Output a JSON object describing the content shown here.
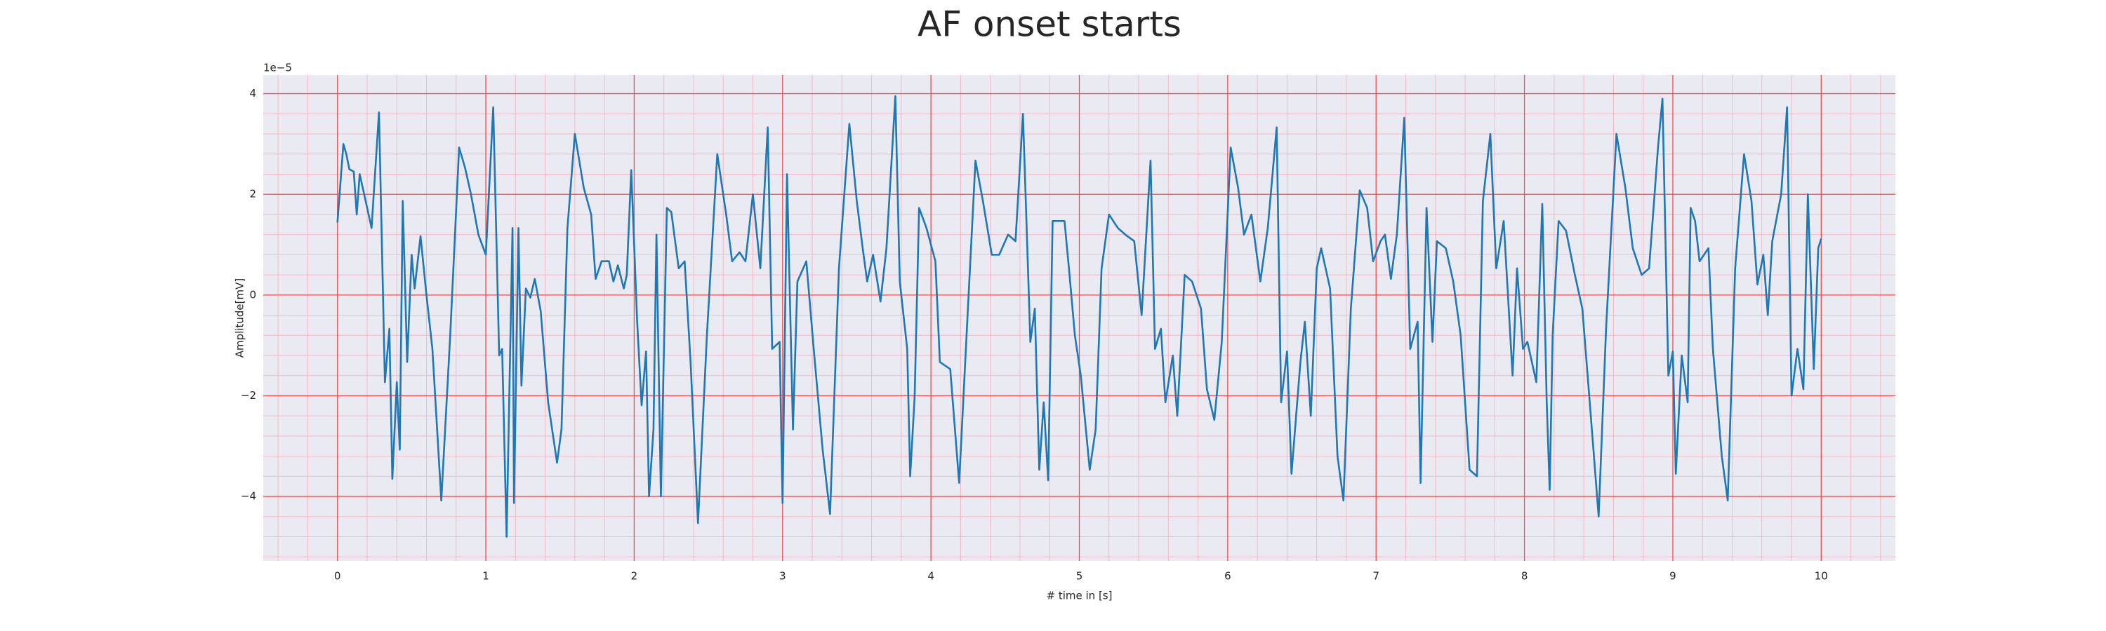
{
  "chart_data": {
    "type": "line",
    "title": "AF onset starts",
    "xlabel": "# time in [s]",
    "ylabel": "Amplitude[mV]",
    "y_offset_label": "1e−5",
    "color": "#1f77b4",
    "grid": true,
    "minor_grid": true,
    "xlim": [
      -0.5,
      10.5
    ],
    "ylim": [
      -5.28,
      4.37
    ],
    "xticks": [
      0,
      1,
      2,
      3,
      4,
      5,
      6,
      7,
      8,
      9,
      10
    ],
    "yticks": [
      {
        "value": -4,
        "label": "−4"
      },
      {
        "value": -2,
        "label": "−2"
      },
      0,
      2,
      4
    ],
    "x": [
      0,
      0.04,
      0.06,
      0.08,
      0.11,
      0.13,
      0.15,
      0.19,
      0.23,
      0.28,
      0.32,
      0.35,
      0.37,
      0.4,
      0.42,
      0.44,
      0.47,
      0.5,
      0.52,
      0.56,
      0.6,
      0.64,
      0.7,
      0.76,
      0.82,
      0.86,
      0.9,
      0.95,
      1.0,
      1.05,
      1.09,
      1.11,
      1.14,
      1.18,
      1.19,
      1.22,
      1.24,
      1.27,
      1.3,
      1.33,
      1.37,
      1.42,
      1.48,
      1.51,
      1.55,
      1.6,
      1.66,
      1.71,
      1.74,
      1.78,
      1.83,
      1.86,
      1.89,
      1.93,
      1.95,
      1.98,
      2.02,
      2.05,
      2.08,
      2.1,
      2.13,
      2.15,
      2.18,
      2.22,
      2.25,
      2.3,
      2.34,
      2.38,
      2.43,
      2.49,
      2.56,
      2.62,
      2.66,
      2.71,
      2.75,
      2.8,
      2.85,
      2.9,
      2.93,
      2.98,
      3.0,
      3.03,
      3.07,
      3.1,
      3.16,
      3.21,
      3.27,
      3.32,
      3.38,
      3.45,
      3.5,
      3.54,
      3.57,
      3.61,
      3.66,
      3.7,
      3.76,
      3.79,
      3.84,
      3.86,
      3.89,
      3.92,
      3.97,
      4.03,
      4.06,
      4.13,
      4.19,
      4.24,
      4.3,
      4.35,
      4.41,
      4.46,
      4.52,
      4.57,
      4.62,
      4.67,
      4.7,
      4.73,
      4.76,
      4.79,
      4.82,
      4.84,
      4.9,
      4.93,
      4.97,
      5.01,
      5.07,
      5.11,
      5.15,
      5.2,
      5.26,
      5.31,
      5.37,
      5.42,
      5.48,
      5.51,
      5.55,
      5.58,
      5.63,
      5.66,
      5.71,
      5.76,
      5.82,
      5.86,
      5.91,
      5.96,
      6.02,
      6.07,
      6.11,
      6.16,
      6.22,
      6.27,
      6.33,
      6.36,
      6.4,
      6.43,
      6.49,
      6.52,
      6.56,
      6.6,
      6.63,
      6.69,
      6.74,
      6.78,
      6.83,
      6.89,
      6.94,
      6.98,
      7.03,
      7.06,
      7.1,
      7.14,
      7.19,
      7.23,
      7.28,
      7.3,
      7.34,
      7.38,
      7.41,
      7.47,
      7.52,
      7.57,
      7.63,
      7.68,
      7.72,
      7.77,
      7.81,
      7.86,
      7.92,
      7.95,
      7.99,
      8.02,
      8.08,
      8.12,
      8.15,
      8.17,
      8.19,
      8.23,
      8.28,
      8.34,
      8.39,
      8.44,
      8.5,
      8.55,
      8.62,
      8.68,
      8.73,
      8.79,
      8.84,
      8.9,
      8.93,
      8.97,
      9.0,
      9.02,
      9.06,
      9.1,
      9.12,
      9.15,
      9.18,
      9.24,
      9.27,
      9.33,
      9.37,
      9.42,
      9.48,
      9.53,
      9.57,
      9.61,
      9.64,
      9.67,
      9.73,
      9.77,
      9.8,
      9.84,
      9.88,
      9.91,
      9.95,
      9.98,
      10.0
    ],
    "values": [
      1.44,
      3.0,
      2.8,
      2.5,
      2.45,
      1.6,
      2.4,
      1.87,
      1.33,
      3.63,
      -1.73,
      -0.67,
      -3.65,
      -1.73,
      -3.07,
      1.87,
      -1.33,
      0.8,
      0.13,
      1.17,
      0,
      -1.07,
      -4.08,
      -0.8,
      2.93,
      2.53,
      2.0,
      1.2,
      0.8,
      3.73,
      -1.2,
      -1.07,
      -4.8,
      1.33,
      -4.13,
      1.33,
      -1.8,
      0.13,
      -0.05,
      0.32,
      -0.32,
      -2.13,
      -3.33,
      -2.67,
      1.33,
      3.2,
      2.13,
      1.6,
      0.32,
      0.67,
      0.67,
      0.27,
      0.59,
      0.13,
      0.4,
      2.48,
      -0.53,
      -2.19,
      -1.12,
      -4.0,
      -2.67,
      1.2,
      -4.0,
      1.73,
      1.65,
      0.53,
      0.67,
      -1.33,
      -4.53,
      -0.8,
      2.8,
      1.6,
      0.67,
      0.85,
      0.67,
      2.0,
      0.53,
      3.33,
      -1.07,
      -0.93,
      -4.13,
      2.4,
      -2.67,
      0.27,
      0.67,
      -1.07,
      -3.07,
      -4.35,
      0.53,
      3.4,
      1.87,
      0.93,
      0.27,
      0.8,
      -0.13,
      0.93,
      3.95,
      0.27,
      -1.07,
      -3.6,
      -2.03,
      1.73,
      1.33,
      0.67,
      -1.33,
      -1.47,
      -3.73,
      -0.8,
      2.67,
      1.87,
      0.8,
      0.8,
      1.2,
      1.07,
      3.6,
      -0.93,
      -0.27,
      -3.47,
      -2.13,
      -3.68,
      1.47,
      1.47,
      1.47,
      0.53,
      -0.8,
      -1.6,
      -3.47,
      -2.67,
      0.53,
      1.6,
      1.33,
      1.2,
      1.07,
      -0.4,
      2.67,
      -1.07,
      -0.67,
      -2.13,
      -1.2,
      -2.4,
      0.4,
      0.27,
      -0.27,
      -1.87,
      -2.48,
      -0.93,
      2.93,
      2.13,
      1.2,
      1.6,
      0.27,
      1.33,
      3.33,
      -2.13,
      -1.12,
      -3.55,
      -1.33,
      -0.53,
      -2.4,
      0.53,
      0.93,
      0.13,
      -3.2,
      -4.08,
      -0.27,
      2.08,
      1.73,
      0.67,
      1.07,
      1.2,
      0.32,
      1.2,
      3.52,
      -1.07,
      -0.53,
      -3.73,
      1.73,
      -0.93,
      1.07,
      0.93,
      0.27,
      -0.8,
      -3.47,
      -3.6,
      1.87,
      3.2,
      0.53,
      1.47,
      -1.6,
      0.53,
      -1.07,
      -0.93,
      -1.73,
      1.81,
      -2.13,
      -3.87,
      -0.8,
      1.47,
      1.28,
      0.4,
      -0.27,
      -2.13,
      -4.4,
      -0.67,
      3.2,
      2.13,
      0.93,
      0.4,
      0.53,
      2.93,
      3.9,
      -1.6,
      -1.12,
      -3.55,
      -1.2,
      -2.13,
      1.73,
      1.47,
      0.67,
      0.93,
      -1.07,
      -3.2,
      -4.08,
      0.53,
      2.8,
      1.87,
      0.21,
      0.8,
      -0.4,
      1.07,
      2.0,
      3.73,
      -2.0,
      -1.07,
      -1.87,
      2.0,
      -1.47,
      0.93,
      1.12
    ]
  }
}
